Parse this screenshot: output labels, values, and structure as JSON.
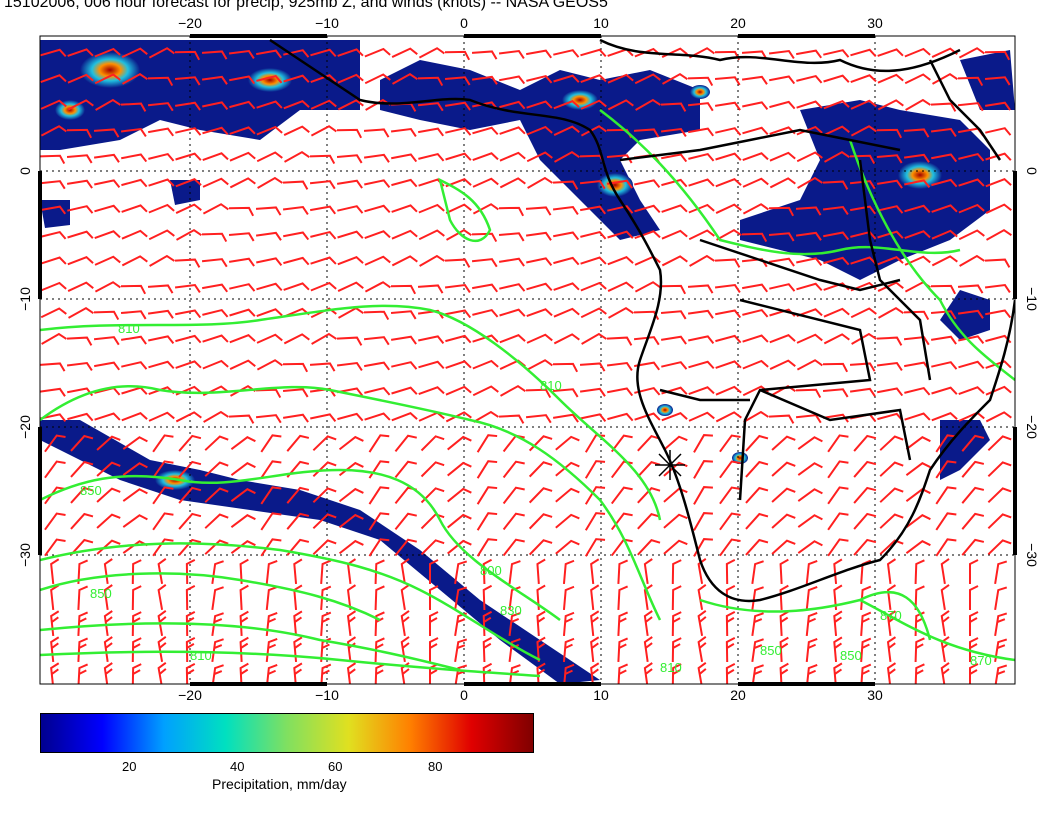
{
  "title": "15102006, 006 hour forecast for precip, 925mb Z, and winds (knots) -- NASA GEOS5",
  "map": {
    "lon_ticks": [
      "−20",
      "−10",
      "0",
      "10",
      "20",
      "30"
    ],
    "lat_ticks": [
      "0",
      "−10",
      "−20",
      "−30"
    ],
    "lon_range": [
      -30,
      42
    ],
    "lat_range": [
      -40,
      10
    ],
    "contour_labels": [
      "810",
      "810",
      "850",
      "850",
      "800",
      "830",
      "810",
      "870",
      "850",
      "870",
      "810",
      "850"
    ],
    "colors": {
      "contour": "#33ee33",
      "wind_barbs": "#ff2020",
      "coast": "#000000",
      "precip_low": "#0a1a8a",
      "precip_high": "#b00000"
    }
  },
  "colorbar": {
    "title": "Precipitation, mm/day",
    "tick_labels": [
      "20",
      "40",
      "60",
      "80"
    ],
    "range": [
      0,
      100
    ],
    "colors": [
      "#00008f",
      "#0000ff",
      "#00a0ff",
      "#00e0c0",
      "#80e060",
      "#e0e020",
      "#ff8000",
      "#e00000",
      "#800000"
    ]
  }
}
